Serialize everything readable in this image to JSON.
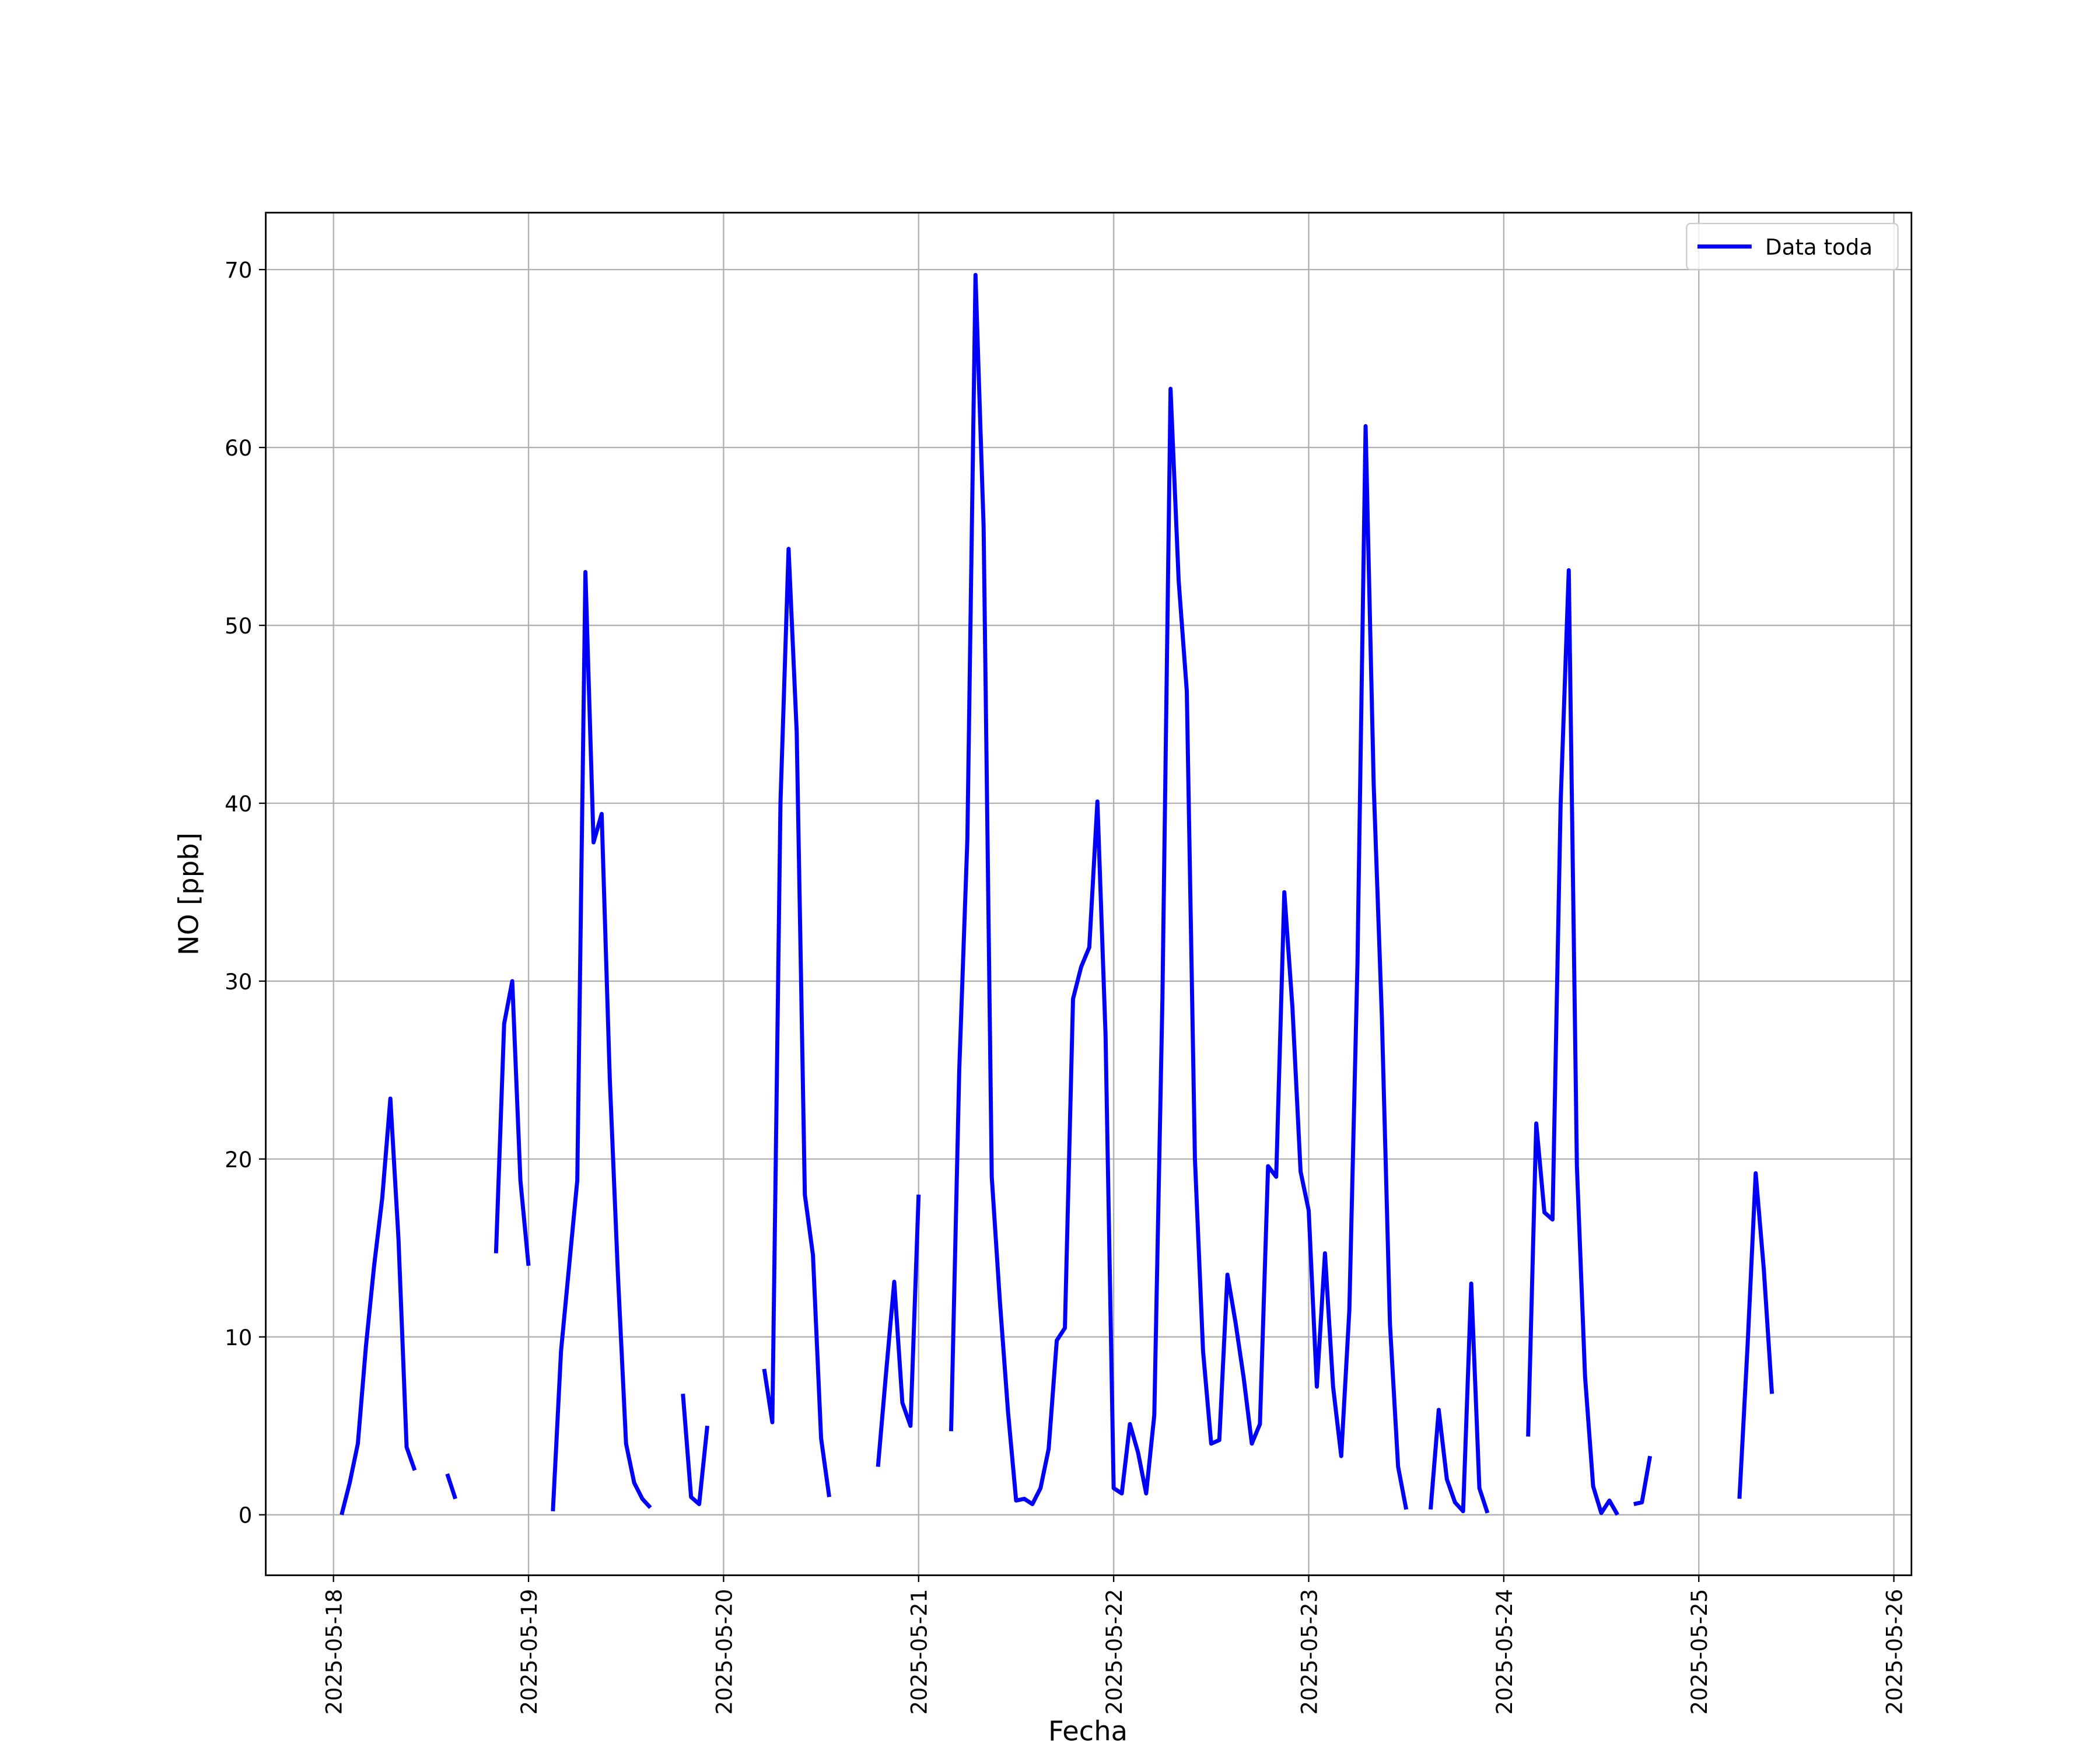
{
  "chart_data": {
    "type": "line",
    "xlabel": "Fecha",
    "ylabel": "NO [ppb]",
    "xlim": [
      "2025-05-17T15:40",
      "2025-05-26T02:10"
    ],
    "xticks": [
      "2025-05-18",
      "2025-05-19",
      "2025-05-20",
      "2025-05-21",
      "2025-05-22",
      "2025-05-23",
      "2025-05-24",
      "2025-05-25",
      "2025-05-26"
    ],
    "ylim": [
      -3.4,
      73.2
    ],
    "yticks": [
      0,
      10,
      20,
      30,
      40,
      50,
      60,
      70
    ],
    "grid": true,
    "legend": "upper right",
    "series": [
      {
        "name": "Data toda",
        "color": "#0000ff",
        "x": [
          "2025-05-18T01:00",
          "2025-05-18T02:00",
          "2025-05-18T03:00",
          "2025-05-18T04:00",
          "2025-05-18T05:00",
          "2025-05-18T06:00",
          "2025-05-18T07:00",
          "2025-05-18T08:00",
          "2025-05-18T09:00",
          "2025-05-18T10:00",
          "2025-05-18T11:00",
          "2025-05-18T14:00",
          "2025-05-18T15:00",
          "2025-05-18T16:00",
          "2025-05-18T20:00",
          "2025-05-18T21:00",
          "2025-05-18T22:00",
          "2025-05-18T23:00",
          "2025-05-19T00:00",
          "2025-05-19T01:00",
          "2025-05-19T03:00",
          "2025-05-19T04:00",
          "2025-05-19T05:00",
          "2025-05-19T06:00",
          "2025-05-19T07:00",
          "2025-05-19T08:00",
          "2025-05-19T09:00",
          "2025-05-19T10:00",
          "2025-05-19T11:00",
          "2025-05-19T12:00",
          "2025-05-19T13:00",
          "2025-05-19T14:00",
          "2025-05-19T15:00",
          "2025-05-19T16:00",
          "2025-05-19T19:00",
          "2025-05-19T20:00",
          "2025-05-19T21:00",
          "2025-05-19T22:00",
          "2025-05-20T00:00",
          "2025-05-20T05:00",
          "2025-05-20T06:00",
          "2025-05-20T07:00",
          "2025-05-20T08:00",
          "2025-05-20T09:00",
          "2025-05-20T10:00",
          "2025-05-20T11:00",
          "2025-05-20T12:00",
          "2025-05-20T13:00",
          "2025-05-20T14:00",
          "2025-05-20T19:00",
          "2025-05-20T20:00",
          "2025-05-20T21:00",
          "2025-05-20T22:00",
          "2025-05-20T23:00",
          "2025-05-21T00:00",
          "2025-05-21T01:00",
          "2025-05-21T04:00",
          "2025-05-21T05:00",
          "2025-05-21T06:00",
          "2025-05-21T07:00",
          "2025-05-21T08:00",
          "2025-05-21T09:00",
          "2025-05-21T10:00",
          "2025-05-21T11:00",
          "2025-05-21T12:00",
          "2025-05-21T13:00",
          "2025-05-21T14:00",
          "2025-05-21T15:00",
          "2025-05-21T16:00",
          "2025-05-21T17:00",
          "2025-05-21T18:00",
          "2025-05-21T19:00",
          "2025-05-21T20:00",
          "2025-05-21T21:00",
          "2025-05-21T22:00",
          "2025-05-21T23:00",
          "2025-05-22T00:00",
          "2025-05-22T01:00",
          "2025-05-22T02:00",
          "2025-05-22T03:00",
          "2025-05-22T04:00",
          "2025-05-22T05:00",
          "2025-05-22T06:00",
          "2025-05-22T07:00",
          "2025-05-22T08:00",
          "2025-05-22T09:00",
          "2025-05-22T10:00",
          "2025-05-22T11:00",
          "2025-05-22T12:00",
          "2025-05-22T13:00",
          "2025-05-22T14:00",
          "2025-05-22T15:00",
          "2025-05-22T16:00",
          "2025-05-22T17:00",
          "2025-05-22T18:00",
          "2025-05-22T19:00",
          "2025-05-22T20:00",
          "2025-05-22T21:00",
          "2025-05-22T22:00",
          "2025-05-22T23:00",
          "2025-05-23T00:00",
          "2025-05-23T01:00",
          "2025-05-23T02:00",
          "2025-05-23T03:00",
          "2025-05-23T04:00",
          "2025-05-23T05:00",
          "2025-05-23T06:00",
          "2025-05-23T07:00",
          "2025-05-23T08:00",
          "2025-05-23T09:00",
          "2025-05-23T10:00",
          "2025-05-23T11:00",
          "2025-05-23T12:00",
          "2025-05-23T13:00",
          "2025-05-23T15:00",
          "2025-05-23T16:00",
          "2025-05-23T17:00",
          "2025-05-23T18:00",
          "2025-05-23T19:00",
          "2025-05-23T20:00",
          "2025-05-23T21:00",
          "2025-05-23T22:00",
          "2025-05-23T23:00",
          "2025-05-24T03:00",
          "2025-05-24T04:00",
          "2025-05-24T05:00",
          "2025-05-24T06:00",
          "2025-05-24T07:00",
          "2025-05-24T08:00",
          "2025-05-24T09:00",
          "2025-05-24T10:00",
          "2025-05-24T11:00",
          "2025-05-24T12:00",
          "2025-05-24T13:00",
          "2025-05-24T14:00",
          "2025-05-24T15:00",
          "2025-05-24T16:00",
          "2025-05-24T17:00",
          "2025-05-24T18:00",
          "2025-05-24T19:00",
          "2025-05-25T05:00",
          "2025-05-25T06:00",
          "2025-05-25T07:00",
          "2025-05-25T08:00",
          "2025-05-25T09:00"
        ],
        "values": [
          0,
          1.8,
          4,
          9.5,
          14,
          17.8,
          23.4,
          15.5,
          3.8,
          2.5,
          null,
          2.3,
          0.9,
          null,
          14.7,
          27.6,
          30,
          18.8,
          14,
          null,
          0.2,
          9.2,
          14,
          18.8,
          53,
          37.8,
          39.4,
          24.5,
          13.5,
          4,
          1.8,
          0.9,
          0.4,
          null,
          6.8,
          1,
          0.6,
          5,
          null,
          8.2,
          5.2,
          40,
          54.3,
          44,
          18,
          14.6,
          4.3,
          1,
          null,
          2.7,
          8,
          13.1,
          6.3,
          5,
          18,
          null,
          4.7,
          25,
          38,
          69.7,
          55.5,
          19,
          12,
          5.8,
          0.8,
          0.9,
          0.6,
          1.5,
          3.7,
          9.8,
          10.5,
          29,
          30.8,
          31.9,
          40.1,
          27,
          1.5,
          1.2,
          5.1,
          3.5,
          1.2,
          5.6,
          29,
          63.3,
          52.5,
          46.3,
          20,
          9.2,
          4,
          4.2,
          13.5,
          10.8,
          7.7,
          4,
          5.1,
          19.6,
          19,
          35,
          28.5,
          19.3,
          17.1,
          7.2,
          14.7,
          7.2,
          3.3,
          11.5,
          31,
          61.2,
          41,
          28,
          10.7,
          2.7,
          0.3,
          null,
          0.3,
          5.9,
          2,
          0.7,
          0.2,
          13,
          1.5,
          0.1,
          null,
          4.4,
          22,
          17,
          16.6,
          40,
          53.1,
          19.6,
          7.8,
          1.6,
          0.1,
          0.8,
          0,
          null,
          0.6,
          0.7,
          3.3,
          null,
          0.9,
          9.5,
          19.2,
          13.8,
          6.8
        ]
      }
    ]
  }
}
